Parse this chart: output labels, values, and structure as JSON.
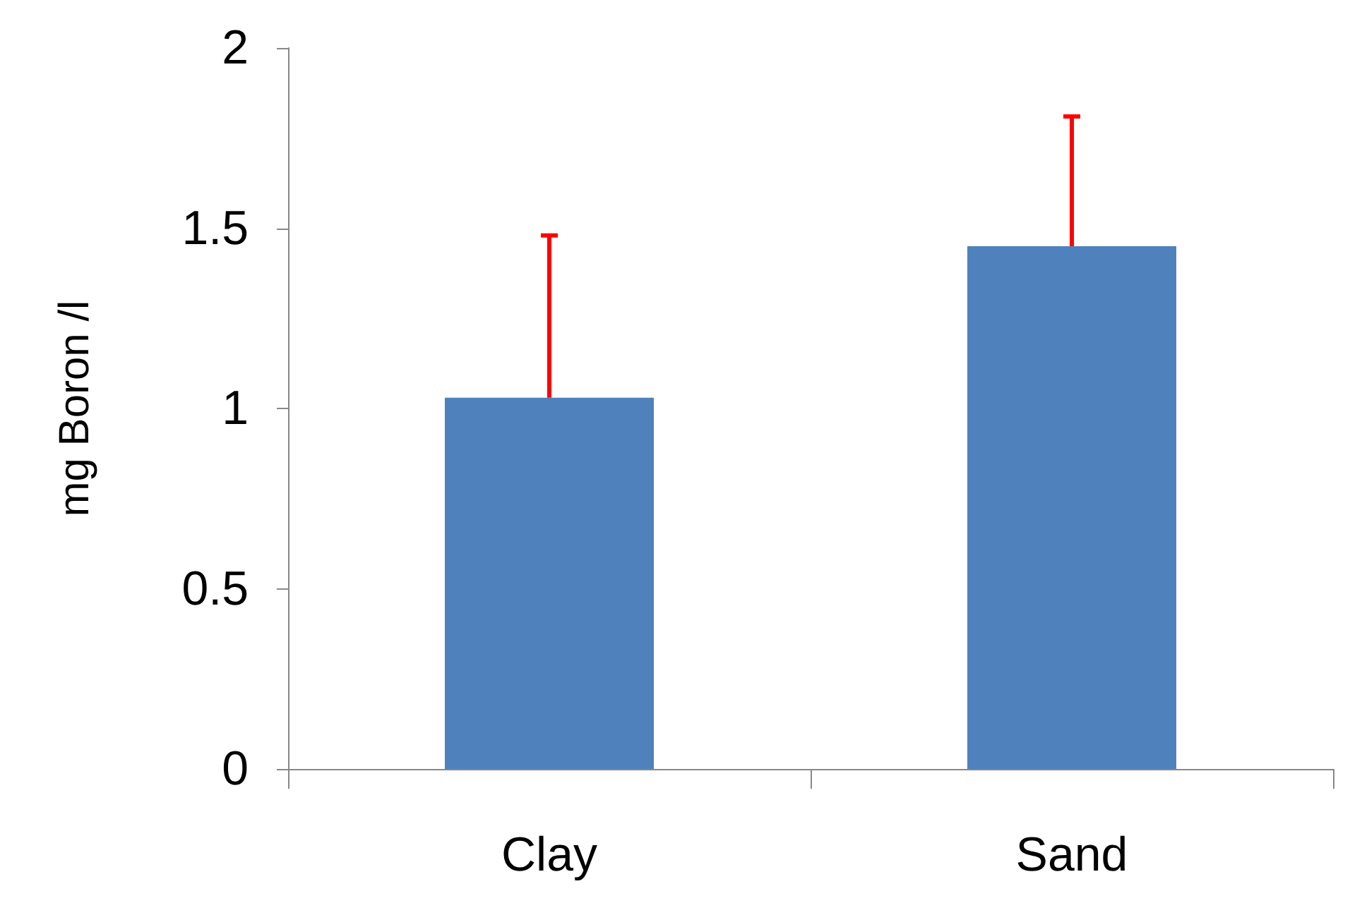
{
  "chart_data": {
    "type": "bar",
    "ylabel": "mg Boron /l",
    "categories": [
      "Clay",
      "Sand"
    ],
    "series": [
      {
        "color": "#4f81bd",
        "values": [
          1.03,
          1.45
        ],
        "errors": [
          [
            1.03,
            1.48
          ],
          [
            1.45,
            1.81
          ]
        ]
      }
    ],
    "ylim": [
      0,
      2
    ],
    "yticks": [
      0,
      0.5,
      1,
      1.5,
      2
    ],
    "grid": false
  }
}
